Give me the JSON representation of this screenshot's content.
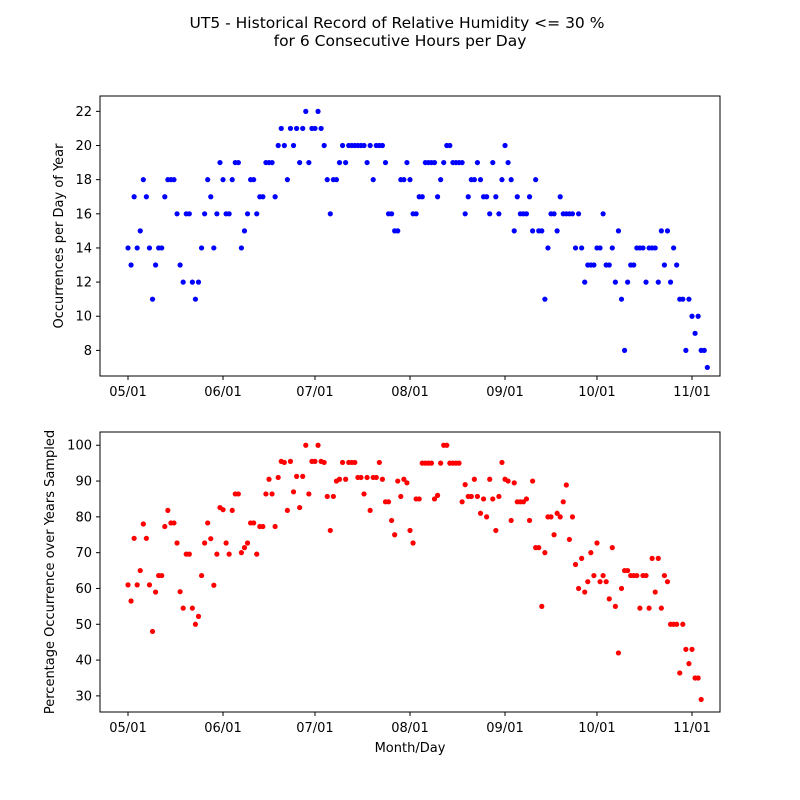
{
  "title": "UT5 - Historical Record of Relative Humidity <= 30 %",
  "subtitle": "for 6 Consecutive Hours per Day",
  "chart_data": [
    {
      "type": "scatter",
      "color": "#0000ff",
      "xlabel": "",
      "ylabel": "Occurrences per Day of Year",
      "x_tick_labels": [
        "05/01",
        "06/01",
        "07/01",
        "08/01",
        "09/01",
        "10/01",
        "11/01"
      ],
      "y_ticks": [
        8,
        10,
        12,
        14,
        16,
        18,
        20,
        22
      ],
      "ylim": [
        6.5,
        22.9
      ],
      "x_start": "05/01",
      "values": [
        14,
        13,
        17,
        14,
        15,
        18,
        17,
        14,
        11,
        13,
        14,
        14,
        17,
        18,
        18,
        18,
        16,
        13,
        12,
        16,
        16,
        12,
        11,
        12,
        14,
        16,
        18,
        17,
        14,
        16,
        19,
        18,
        16,
        16,
        18,
        19,
        19,
        14,
        15,
        16,
        18,
        18,
        16,
        17,
        17,
        19,
        19,
        19,
        17,
        20,
        21,
        20,
        18,
        21,
        20,
        21,
        19,
        21,
        22,
        19,
        21,
        21,
        22,
        21,
        20,
        18,
        16,
        18,
        18,
        19,
        20,
        19,
        20,
        20,
        20,
        20,
        20,
        20,
        19,
        20,
        18,
        20,
        20,
        20,
        19,
        16,
        16,
        15,
        15,
        18,
        18,
        19,
        18,
        16,
        16,
        17,
        17,
        19,
        19,
        19,
        19,
        17,
        18,
        19,
        20,
        20,
        19,
        19,
        19,
        19,
        16,
        17,
        18,
        18,
        19,
        18,
        17,
        17,
        16,
        19,
        17,
        16,
        18,
        20,
        19,
        18,
        15,
        17,
        16,
        16,
        16,
        17,
        15,
        18,
        15,
        15,
        11,
        14,
        16,
        16,
        15,
        17,
        16,
        16,
        16,
        16,
        14,
        16,
        14,
        12,
        13,
        13,
        13,
        14,
        14,
        16,
        13,
        13,
        14,
        12,
        15,
        11,
        8,
        12,
        13,
        13,
        14,
        14,
        14,
        12,
        14,
        14,
        14,
        12,
        15,
        13,
        15,
        12,
        14,
        13,
        11,
        11,
        8,
        11,
        10,
        9,
        10,
        8,
        8,
        7
      ]
    },
    {
      "type": "scatter",
      "color": "#ff0000",
      "xlabel": "Month/Day",
      "ylabel": "Percentage Occurrence over Years Sampled",
      "x_tick_labels": [
        "05/01",
        "06/01",
        "07/01",
        "08/01",
        "09/01",
        "10/01",
        "11/01"
      ],
      "y_ticks": [
        30,
        40,
        50,
        60,
        70,
        80,
        90,
        100
      ],
      "ylim": [
        25.5,
        103.7
      ],
      "x_start": "05/01",
      "values": [
        61,
        56.5,
        74,
        61,
        65,
        78,
        74,
        61,
        48,
        59,
        63.6,
        63.6,
        77.3,
        81.8,
        78.3,
        78.3,
        72.7,
        59.1,
        54.5,
        69.6,
        69.6,
        54.5,
        50,
        52.2,
        63.6,
        72.7,
        78.3,
        73.9,
        60.9,
        69.6,
        82.6,
        82,
        72.7,
        69.6,
        81.8,
        86.4,
        86.4,
        70,
        71.4,
        72.7,
        78.3,
        78.3,
        69.6,
        77.3,
        77.3,
        86.4,
        90.5,
        86.4,
        77.3,
        91,
        95.5,
        95.2,
        81.8,
        95.5,
        87,
        91.3,
        82.6,
        91.3,
        100,
        86.4,
        95.5,
        95.5,
        100,
        95.5,
        95.2,
        85.7,
        76.2,
        85.7,
        90,
        90.5,
        95.2,
        90.5,
        95.2,
        95.2,
        95.2,
        91,
        91,
        86.4,
        91,
        81.8,
        91,
        91,
        95.2,
        90.5,
        84.2,
        84.2,
        79,
        75,
        90,
        85.7,
        90.5,
        89.5,
        76.2,
        72.7,
        85,
        85,
        95,
        95,
        95,
        95,
        85,
        86,
        95,
        100,
        100,
        95,
        95,
        95,
        95,
        84.2,
        89,
        85.7,
        85.7,
        90.5,
        85.7,
        81,
        85,
        80,
        90.5,
        85,
        76.2,
        85.7,
        95.2,
        90.5,
        90,
        79,
        89.5,
        84.2,
        84.2,
        84.2,
        85,
        79,
        90,
        71.4,
        71.4,
        55,
        70,
        80,
        80,
        75,
        81,
        80,
        84.2,
        88.9,
        73.7,
        80,
        66.7,
        60,
        68.4,
        59,
        61.9,
        70,
        63.6,
        72.7,
        61.9,
        63.6,
        61.9,
        57.1,
        71.4,
        55,
        42,
        60,
        65,
        65,
        63.6,
        63.6,
        63.6,
        54.5,
        63.6,
        63.6,
        54.5,
        68.4,
        59,
        68.4,
        54.5,
        63.6,
        61.9,
        50,
        50,
        50,
        36.4,
        50,
        43,
        39,
        43,
        35,
        35,
        29
      ]
    }
  ]
}
